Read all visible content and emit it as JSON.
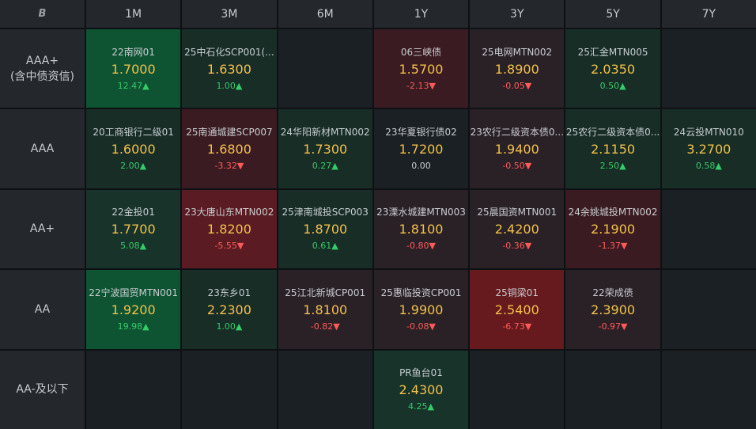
{
  "logo": "B",
  "columns": [
    "1M",
    "3M",
    "6M",
    "1Y",
    "3Y",
    "5Y",
    "7Y"
  ],
  "rows": [
    {
      "label_lines": [
        "AAA+",
        "(含中债资信)"
      ],
      "cells": [
        {
          "name": "22南网01",
          "rate": "1.7000",
          "change": "12.47▲",
          "dir": "up",
          "bg": "#0e5433"
        },
        {
          "name": "25中石化SCP001(...",
          "rate": "1.6300",
          "change": "1.00▲",
          "dir": "up",
          "bg": "#172d26"
        },
        null,
        {
          "name": "06三峡债",
          "rate": "1.5700",
          "change": "-2.13▼",
          "dir": "down",
          "bg": "#3a1b22"
        },
        {
          "name": "25电网MTN002",
          "rate": "1.8900",
          "change": "-0.05▼",
          "dir": "down",
          "bg": "#2a2127"
        },
        {
          "name": "25汇金MTN005",
          "rate": "2.0350",
          "change": "0.50▲",
          "dir": "up",
          "bg": "#172d26"
        },
        null
      ]
    },
    {
      "label_lines": [
        "AAA"
      ],
      "cells": [
        {
          "name": "20工商银行二级01",
          "rate": "1.6000",
          "change": "2.00▲",
          "dir": "up",
          "bg": "#172d26"
        },
        {
          "name": "25南通城建SCP007",
          "rate": "1.6800",
          "change": "-3.32▼",
          "dir": "down",
          "bg": "#3a1b22"
        },
        {
          "name": "24华阳新材MTN002",
          "rate": "1.7300",
          "change": "0.27▲",
          "dir": "up",
          "bg": "#172d26"
        },
        {
          "name": "23华夏银行债02",
          "rate": "1.7200",
          "change": "0.00",
          "dir": "flat",
          "bg": "#1b2024"
        },
        {
          "name": "23农行二级资本债0...",
          "rate": "1.9400",
          "change": "-0.50▼",
          "dir": "down",
          "bg": "#2a2127"
        },
        {
          "name": "25农行二级资本债0...",
          "rate": "2.1150",
          "change": "2.50▲",
          "dir": "up",
          "bg": "#172d26"
        },
        {
          "name": "24云投MTN010",
          "rate": "3.2700",
          "change": "0.58▲",
          "dir": "up",
          "bg": "#172d26"
        }
      ]
    },
    {
      "label_lines": [
        "AA+"
      ],
      "cells": [
        {
          "name": "22金投01",
          "rate": "1.7700",
          "change": "5.08▲",
          "dir": "up",
          "bg": "#17332a"
        },
        {
          "name": "23大唐山东MTN002",
          "rate": "1.8200",
          "change": "-5.55▼",
          "dir": "down",
          "bg": "#5a1b22"
        },
        {
          "name": "25津南城投SCP003",
          "rate": "1.8700",
          "change": "0.61▲",
          "dir": "up",
          "bg": "#172d26"
        },
        {
          "name": "23溧水城建MTN003",
          "rate": "1.8100",
          "change": "-0.80▼",
          "dir": "down",
          "bg": "#2a2127"
        },
        {
          "name": "25晨国资MTN001",
          "rate": "2.4200",
          "change": "-0.36▼",
          "dir": "down",
          "bg": "#2a2127"
        },
        {
          "name": "24余姚城投MTN002",
          "rate": "2.1900",
          "change": "-1.37▼",
          "dir": "down",
          "bg": "#3a1b22"
        },
        null
      ]
    },
    {
      "label_lines": [
        "AA"
      ],
      "cells": [
        {
          "name": "22宁波国贸MTN001",
          "rate": "1.9200",
          "change": "19.98▲",
          "dir": "up",
          "bg": "#0e5433"
        },
        {
          "name": "23东乡01",
          "rate": "2.2300",
          "change": "1.00▲",
          "dir": "up",
          "bg": "#172d26"
        },
        {
          "name": "25江北新城CP001",
          "rate": "1.8100",
          "change": "-0.82▼",
          "dir": "down",
          "bg": "#2a2127"
        },
        {
          "name": "25惠临投资CP001",
          "rate": "1.9900",
          "change": "-0.08▼",
          "dir": "down",
          "bg": "#2a2127"
        },
        {
          "name": "25铜梁01",
          "rate": "2.5400",
          "change": "-6.73▼",
          "dir": "down",
          "bg": "#661a1e"
        },
        {
          "name": "22荣成债",
          "rate": "2.3900",
          "change": "-0.97▼",
          "dir": "down",
          "bg": "#2a2127"
        },
        null
      ]
    },
    {
      "label_lines": [
        "AA-及以下"
      ],
      "cells": [
        null,
        null,
        null,
        {
          "name": "PR鱼台01",
          "rate": "2.4300",
          "change": "4.25▲",
          "dir": "up",
          "bg": "#17332a"
        },
        null,
        null,
        null
      ]
    }
  ]
}
